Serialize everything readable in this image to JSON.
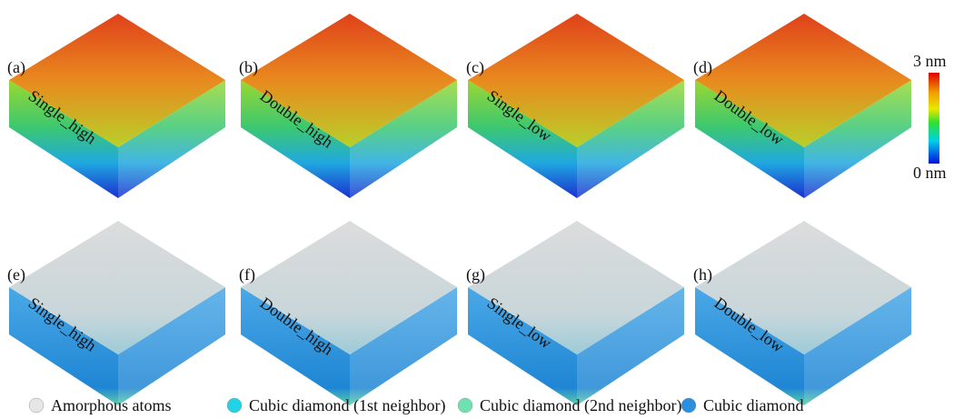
{
  "panels": [
    {
      "label": "(a)",
      "name": "Single_high",
      "style": "height"
    },
    {
      "label": "(b)",
      "name": "Double_high",
      "style": "height"
    },
    {
      "label": "(c)",
      "name": "Single_low",
      "style": "height"
    },
    {
      "label": "(d)",
      "name": "Double_low",
      "style": "height"
    },
    {
      "label": "(e)",
      "name": "Single_high",
      "style": "structure"
    },
    {
      "label": "(f)",
      "name": "Double_high",
      "style": "structure"
    },
    {
      "label": "(g)",
      "name": "Single_low",
      "style": "structure"
    },
    {
      "label": "(h)",
      "name": "Double_low",
      "style": "structure"
    }
  ],
  "colorbar": {
    "max_label": "3 nm",
    "min_label": "0 nm"
  },
  "legend": [
    {
      "label": "Amorphous atoms",
      "color": "#e6e6e6"
    },
    {
      "label": "Cubic diamond (1st neighbor)",
      "color": "#22d3e6"
    },
    {
      "label": "Cubic diamond (2nd neighbor)",
      "color": "#6fe0b0"
    },
    {
      "label": "Cubic diamond",
      "color": "#2a8fe0"
    }
  ]
}
